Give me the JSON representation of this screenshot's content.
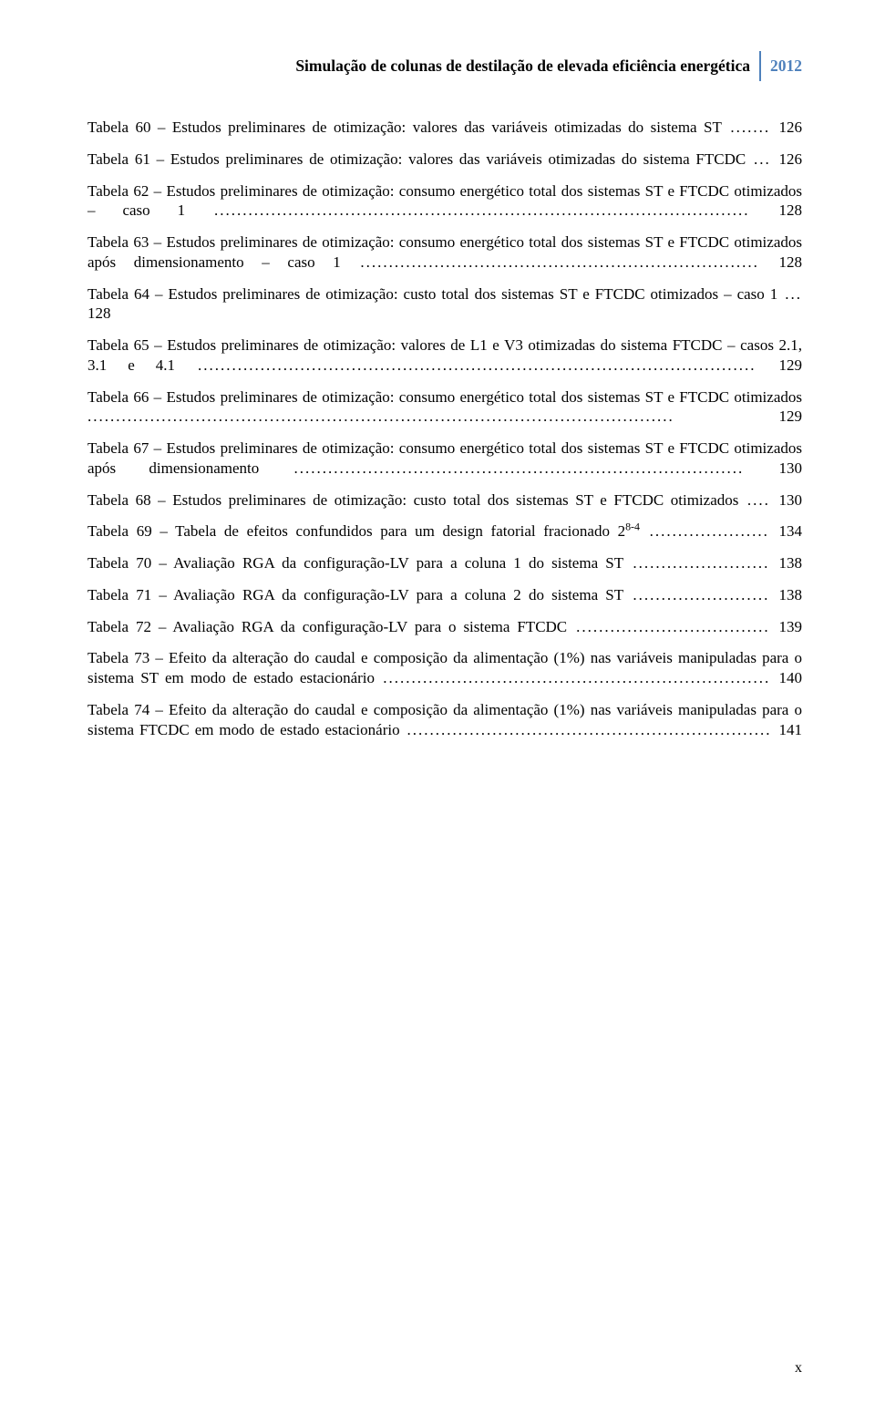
{
  "colors": {
    "text": "#000000",
    "header_rule": "#4f81bc",
    "header_year_text": "#4f81bc",
    "background": "#ffffff"
  },
  "fonts": {
    "family": "Times New Roman",
    "body_size_pt": 12,
    "header_size_pt": 12
  },
  "header": {
    "title": "Simulação de colunas de destilação de elevada eficiência energética",
    "year": "2012"
  },
  "entries": [
    {
      "text": "Tabela 60 – Estudos preliminares de otimização: valores das variáveis otimizadas do sistema ST",
      "page": "126",
      "leader_len": 7
    },
    {
      "text": "Tabela 61 – Estudos preliminares de otimização: valores das variáveis otimizadas do sistema FTCDC",
      "page": "126",
      "leader_len": 3
    },
    {
      "text": "Tabela 62 – Estudos preliminares de otimização: consumo energético total dos sistemas ST e FTCDC otimizados – caso 1",
      "page": "128",
      "leader_len": 94
    },
    {
      "text": "Tabela 63 – Estudos preliminares de otimização: consumo energético total dos sistemas ST e FTCDC otimizados após dimensionamento – caso 1",
      "page": "128",
      "leader_len": 70
    },
    {
      "text": "Tabela 64 – Estudos preliminares de otimização: custo total dos sistemas ST e FTCDC otimizados – caso 1",
      "page": "128",
      "leader_len": 3
    },
    {
      "text": "Tabela 65 – Estudos preliminares de otimização: valores de L1 e V3 otimizadas do sistema FTCDC – casos 2.1, 3.1 e 4.1",
      "page": "129",
      "leader_len": 98
    },
    {
      "text": "Tabela 66 – Estudos preliminares de otimização: consumo energético total dos sistemas ST e FTCDC otimizados",
      "page": "129",
      "leader_len": 103
    },
    {
      "text": "Tabela 67 – Estudos preliminares de otimização: consumo energético total dos sistemas ST e FTCDC otimizados após dimensionamento",
      "page": "130",
      "leader_len": 79
    },
    {
      "text": "Tabela 68 – Estudos preliminares de otimização: custo total dos sistemas ST e FTCDC otimizados",
      "page": "130",
      "leader_len": 4
    },
    {
      "text": "Tabela 69 – Tabela de efeitos confundidos para um design fatorial fracionado 2",
      "sup": "8-4",
      "page": "134",
      "leader_len": 21
    },
    {
      "text": "Tabela 70 – Avaliação RGA da configuração-LV para a coluna 1 do sistema ST",
      "page": "138",
      "leader_len": 24
    },
    {
      "text": "Tabela 71 – Avaliação RGA da configuração-LV para a coluna 2 do sistema ST",
      "page": "138",
      "leader_len": 24
    },
    {
      "text": "Tabela 72 – Avaliação RGA da configuração-LV para o sistema FTCDC",
      "page": "139",
      "leader_len": 34
    },
    {
      "text": "Tabela 73 – Efeito da alteração do caudal e composição da alimentação (1%) nas variáveis manipuladas para o sistema ST em modo de estado estacionário",
      "page": "140",
      "leader_len": 68
    },
    {
      "text": "Tabela 74 – Efeito da alteração do caudal e composição da alimentação (1%) nas variáveis manipuladas para o sistema FTCDC em modo de estado estacionário",
      "page": "141",
      "leader_len": 64
    }
  ],
  "page_number": "x"
}
